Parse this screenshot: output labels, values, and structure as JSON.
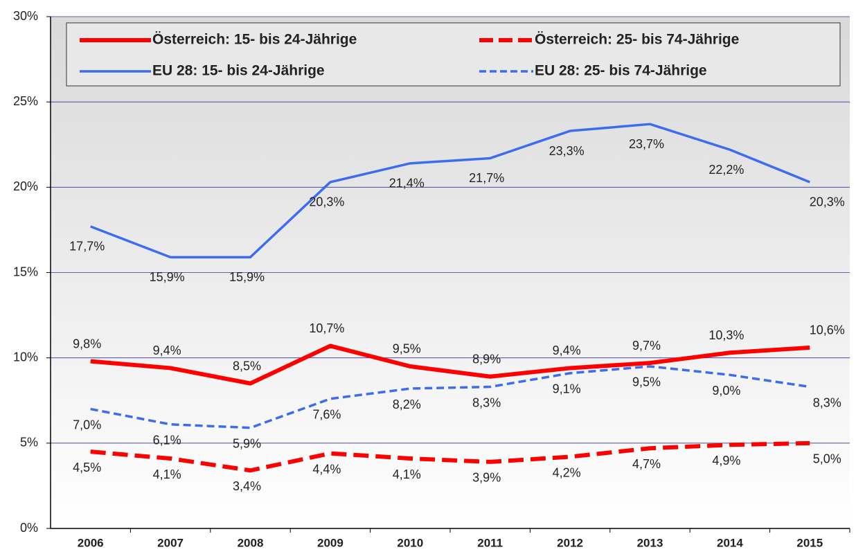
{
  "chart_data": {
    "type": "line",
    "categories": [
      "2006",
      "2007",
      "2008",
      "2009",
      "2010",
      "2011",
      "2012",
      "2013",
      "2014",
      "2015"
    ],
    "ylim": [
      0,
      30
    ],
    "yticks": [
      {
        "value": 0,
        "label": "0%"
      },
      {
        "value": 5,
        "label": "5%"
      },
      {
        "value": 10,
        "label": "10%"
      },
      {
        "value": 15,
        "label": "15%"
      },
      {
        "value": 20,
        "label": "20%"
      },
      {
        "value": 25,
        "label": "25%"
      },
      {
        "value": 30,
        "label": "30%"
      }
    ],
    "grid": true,
    "series": [
      {
        "name": "Österreich: 15- bis 24-Jährige",
        "color": "#ff0000",
        "dashed": false,
        "line_width": 6,
        "values": [
          9.8,
          9.4,
          8.5,
          10.7,
          9.5,
          8.9,
          9.4,
          9.7,
          10.3,
          10.6
        ],
        "value_labels": [
          "9,8%",
          "9,4%",
          "8,5%",
          "10,7%",
          "9,5%",
          "8,9%",
          "9,4%",
          "9,7%",
          "10,3%",
          "10,6%"
        ]
      },
      {
        "name": "Österreich: 25- bis 74-Jährige",
        "color": "#ff0000",
        "dashed": true,
        "line_width": 6,
        "values": [
          4.5,
          4.1,
          3.4,
          4.4,
          4.1,
          3.9,
          4.2,
          4.7,
          4.9,
          5.0
        ],
        "value_labels": [
          "4,5%",
          "4,1%",
          "3,4%",
          "4,4%",
          "4,1%",
          "3,9%",
          "4,2%",
          "4,7%",
          "4,9%",
          "5,0%"
        ]
      },
      {
        "name": "EU 28: 15- bis 24-Jährige",
        "color": "#3d6cf0",
        "dashed": false,
        "line_width": 3.5,
        "values": [
          17.7,
          15.9,
          15.9,
          20.3,
          21.4,
          21.7,
          23.3,
          23.7,
          22.2,
          20.3
        ],
        "value_labels": [
          "17,7%",
          "15,9%",
          "15,9%",
          "20,3%",
          "21,4%",
          "21,7%",
          "23,3%",
          "23,7%",
          "22,2%",
          "20,3%"
        ]
      },
      {
        "name": "EU 28: 25- bis 74-Jährige",
        "color": "#3d6cf0",
        "dashed": true,
        "line_width": 3.5,
        "values": [
          7.0,
          6.1,
          5.9,
          7.6,
          8.2,
          8.3,
          9.1,
          9.5,
          9.0,
          8.3
        ],
        "value_labels": [
          "7,0%",
          "6,1%",
          "5,9%",
          "7,6%",
          "8,2%",
          "8,3%",
          "9,1%",
          "9,5%",
          "9,0%",
          "8,3%"
        ]
      }
    ]
  }
}
